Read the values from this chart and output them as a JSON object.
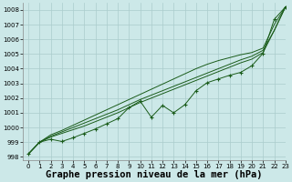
{
  "background_color": "#cce8e8",
  "grid_color": "#aacccc",
  "line_color": "#1a5c1a",
  "xlabel": "Graphe pression niveau de la mer (hPa)",
  "xlabel_fontsize": 7.5,
  "xlim": [
    -0.5,
    23
  ],
  "ylim": [
    997.8,
    1008.5
  ],
  "yticks": [
    998,
    999,
    1000,
    1001,
    1002,
    1003,
    1004,
    1005,
    1006,
    1007,
    1008
  ],
  "xticks": [
    0,
    1,
    2,
    3,
    4,
    5,
    6,
    7,
    8,
    9,
    10,
    11,
    12,
    13,
    14,
    15,
    16,
    17,
    18,
    19,
    20,
    21,
    22,
    23
  ],
  "series_smooth1": [
    998.2,
    999.0,
    999.35,
    999.6,
    999.85,
    1000.1,
    1000.4,
    1000.7,
    1001.0,
    1001.35,
    1001.7,
    1002.0,
    1002.3,
    1002.6,
    1002.9,
    1003.2,
    1003.5,
    1003.8,
    1004.1,
    1004.4,
    1004.65,
    1005.1,
    1006.6,
    1008.2
  ],
  "series_smooth2": [
    998.2,
    999.0,
    999.4,
    999.7,
    1000.0,
    1000.3,
    1000.6,
    1000.9,
    1001.2,
    1001.55,
    1001.9,
    1002.2,
    1002.5,
    1002.8,
    1003.1,
    1003.4,
    1003.7,
    1004.0,
    1004.3,
    1004.6,
    1004.85,
    1005.25,
    1006.6,
    1008.2
  ],
  "series_smooth3": [
    998.2,
    999.0,
    999.5,
    999.8,
    1000.15,
    1000.5,
    1000.85,
    1001.2,
    1001.55,
    1001.9,
    1002.25,
    1002.6,
    1002.95,
    1003.3,
    1003.65,
    1004.0,
    1004.3,
    1004.55,
    1004.75,
    1004.95,
    1005.1,
    1005.4,
    1007.0,
    1008.2
  ],
  "series_marker": [
    998.2,
    999.0,
    999.2,
    999.05,
    999.3,
    999.6,
    999.9,
    1000.25,
    1000.6,
    1001.35,
    1001.8,
    1000.7,
    1001.5,
    1001.0,
    1001.55,
    1002.5,
    1003.05,
    1003.3,
    1003.55,
    1003.75,
    1004.2,
    1005.05,
    1007.35,
    1008.2
  ]
}
